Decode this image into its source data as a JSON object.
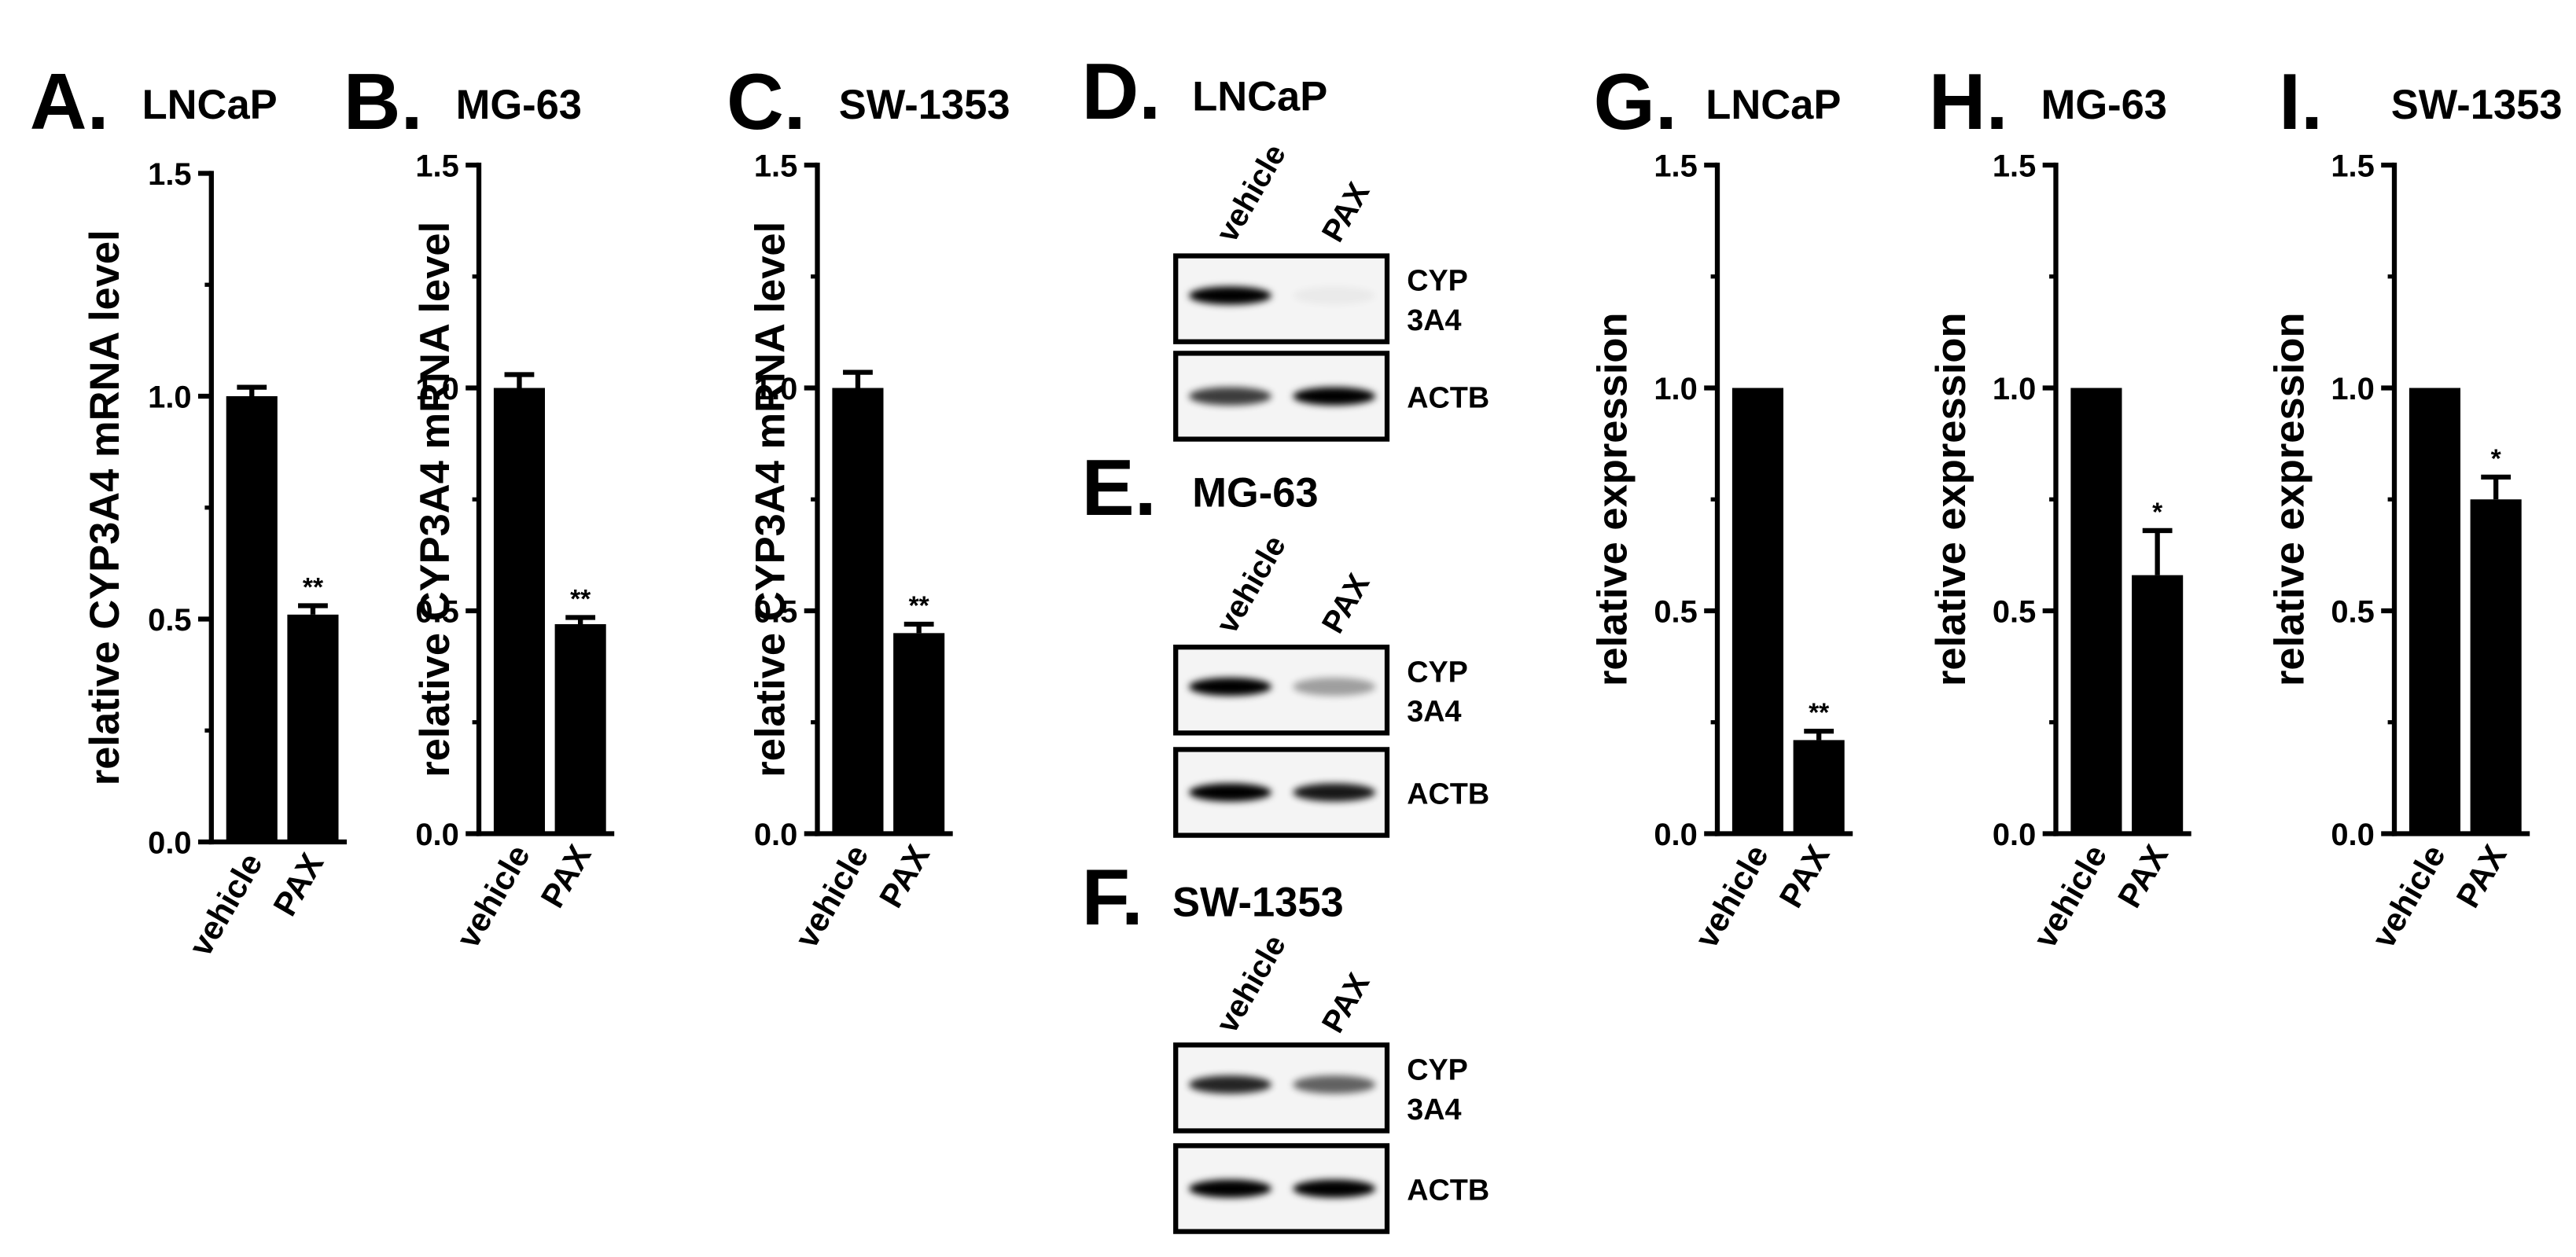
{
  "chart_data": [
    {
      "type": "bar",
      "panel": "A.",
      "title": "LNCaP",
      "ylabel": "relative CYP3A4 mRNA level",
      "color": "#000000",
      "categories": [
        "vehicle",
        "PAX"
      ],
      "values": [
        1.0,
        0.51
      ],
      "errors": [
        0.02,
        0.02
      ],
      "significance": [
        null,
        "**"
      ],
      "ylim": [
        0,
        1.5
      ],
      "yticks": [
        {
          "value": 0,
          "label": "0.0"
        },
        {
          "value": 0.5,
          "label": "0.5"
        },
        {
          "value": 1,
          "label": "1.0"
        },
        {
          "value": 1.5,
          "label": "1.5"
        }
      ]
    },
    {
      "type": "bar",
      "panel": "B.",
      "title": "MG-63",
      "ylabel": "relative CYP3A4 mRNA level",
      "color": "#000000",
      "categories": [
        "vehicle",
        "PAX"
      ],
      "values": [
        1.0,
        0.47
      ],
      "errors": [
        0.03,
        0.015
      ],
      "significance": [
        null,
        "**"
      ],
      "ylim": [
        0,
        1.5
      ],
      "yticks": [
        {
          "value": 0,
          "label": "0.0"
        },
        {
          "value": 0.5,
          "label": "0.5"
        },
        {
          "value": 1,
          "label": "1.0"
        },
        {
          "value": 1.5,
          "label": "1.5"
        }
      ]
    },
    {
      "type": "bar",
      "panel": "C.",
      "title": "SW-1353",
      "ylabel": "relative CYP3A4 mRNA level",
      "color": "#000000",
      "categories": [
        "vehicle",
        "PAX"
      ],
      "values": [
        1.0,
        0.45
      ],
      "errors": [
        0.035,
        0.02
      ],
      "significance": [
        null,
        "**"
      ],
      "ylim": [
        0,
        1.5
      ],
      "yticks": [
        {
          "value": 0,
          "label": "0.0"
        },
        {
          "value": 0.5,
          "label": "0.5"
        },
        {
          "value": 1,
          "label": "1.0"
        },
        {
          "value": 1.5,
          "label": "1.5"
        }
      ]
    },
    {
      "type": "bar",
      "panel": "G.",
      "title": "LNCaP",
      "ylabel": "relative expression",
      "color": "#000000",
      "categories": [
        "vehicle",
        "PAX"
      ],
      "values": [
        1.0,
        0.21
      ],
      "errors": [
        null,
        0.02
      ],
      "significance": [
        null,
        "**"
      ],
      "ylim": [
        0,
        1.5
      ],
      "yticks": [
        {
          "value": 0,
          "label": "0.0"
        },
        {
          "value": 0.5,
          "label": "0.5"
        },
        {
          "value": 1,
          "label": "1.0"
        },
        {
          "value": 1.5,
          "label": "1.5"
        }
      ]
    },
    {
      "type": "bar",
      "panel": "H.",
      "title": "MG-63",
      "ylabel": "relative expression",
      "color": "#000000",
      "categories": [
        "vehicle",
        "PAX"
      ],
      "values": [
        1.0,
        0.58
      ],
      "errors": [
        null,
        0.1
      ],
      "significance": [
        null,
        "*"
      ],
      "ylim": [
        0,
        1.5
      ],
      "yticks": [
        {
          "value": 0,
          "label": "0.0"
        },
        {
          "value": 0.5,
          "label": "0.5"
        },
        {
          "value": 1,
          "label": "1.0"
        },
        {
          "value": 1.5,
          "label": "1.5"
        }
      ]
    },
    {
      "type": "bar",
      "panel": "I.",
      "title": "SW-1353",
      "ylabel": "relative expression",
      "color": "#000000",
      "categories": [
        "vehicle",
        "PAX"
      ],
      "values": [
        1.0,
        0.75
      ],
      "errors": [
        null,
        0.05
      ],
      "significance": [
        null,
        "*"
      ],
      "ylim": [
        0,
        1.5
      ],
      "yticks": [
        {
          "value": 0,
          "label": "0.0"
        },
        {
          "value": 0.5,
          "label": "0.5"
        },
        {
          "value": 1,
          "label": "1.0"
        },
        {
          "value": 1.5,
          "label": "1.5"
        }
      ]
    }
  ],
  "blots": [
    {
      "panel": "D.",
      "title": "LNCaP",
      "lanes": [
        "vehicle",
        "PAX"
      ],
      "rows": [
        [
          "CYP",
          "3A4"
        ],
        [
          "ACTB"
        ]
      ]
    },
    {
      "panel": "E.",
      "title": "MG-63",
      "lanes": [
        "vehicle",
        "PAX"
      ],
      "rows": [
        [
          "CYP",
          "3A4"
        ],
        [
          "ACTB"
        ]
      ]
    },
    {
      "panel": "F.",
      "title": "SW-1353",
      "lanes": [
        "vehicle",
        "PAX"
      ],
      "rows": [
        [
          "CYP",
          "3A4"
        ],
        [
          "ACTB"
        ]
      ]
    }
  ]
}
